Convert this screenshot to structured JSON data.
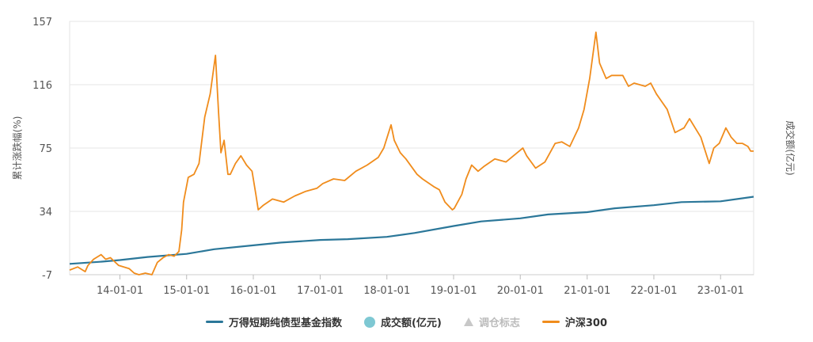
{
  "chart_data": {
    "type": "line",
    "ylabel_left": "累计涨跌幅(%)",
    "ylabel_right": "成交额(亿元)",
    "y_ticks": [
      -7,
      34,
      75,
      116,
      157
    ],
    "ylim": [
      -7,
      157
    ],
    "x_ticks": [
      "14-01-01",
      "15-01-01",
      "16-01-01",
      "17-01-01",
      "18-01-01",
      "19-01-01",
      "20-01-01",
      "21-01-01",
      "22-01-01",
      "23-01-01"
    ],
    "x_range": [
      "2013-04-01",
      "2023-07-01"
    ],
    "grid": true,
    "legend_position": "bottom",
    "series": [
      {
        "name": "万得短期纯债型基金指数",
        "color": "#2b7799",
        "dates": [
          "2013-04-01",
          "2013-10-01",
          "2014-01-01",
          "2014-06-01",
          "2015-01-01",
          "2015-06-01",
          "2016-01-01",
          "2016-06-01",
          "2017-01-01",
          "2017-06-01",
          "2018-01-01",
          "2018-06-01",
          "2019-01-01",
          "2019-06-01",
          "2020-01-01",
          "2020-06-01",
          "2021-01-01",
          "2021-06-01",
          "2022-01-01",
          "2022-06-01",
          "2023-01-01",
          "2023-07-01"
        ],
        "values": [
          0,
          1.5,
          2.5,
          4.5,
          6.5,
          9.5,
          12,
          13.8,
          15.5,
          16,
          17.5,
          20,
          24.5,
          27.5,
          29.5,
          32,
          33.5,
          36,
          38,
          40,
          40.5,
          43.5
        ]
      },
      {
        "name": "沪深300",
        "color": "#f08c1c",
        "dates": [
          "2013-04-01",
          "2013-05-15",
          "2013-06-25",
          "2013-07-10",
          "2013-08-10",
          "2013-09-20",
          "2013-10-15",
          "2013-11-10",
          "2013-12-25",
          "2014-02-20",
          "2014-03-20",
          "2014-04-15",
          "2014-05-20",
          "2014-06-25",
          "2014-07-25",
          "2014-08-25",
          "2014-09-25",
          "2014-10-25",
          "2014-11-20",
          "2014-12-05",
          "2014-12-15",
          "2015-01-10",
          "2015-02-10",
          "2015-03-10",
          "2015-04-10",
          "2015-05-10",
          "2015-06-08",
          "2015-06-25",
          "2015-07-08",
          "2015-07-25",
          "2015-08-15",
          "2015-08-28",
          "2015-09-25",
          "2015-10-25",
          "2015-11-25",
          "2015-12-25",
          "2016-01-15",
          "2016-01-28",
          "2016-02-25",
          "2016-04-15",
          "2016-06-15",
          "2016-08-15",
          "2016-10-15",
          "2016-12-15",
          "2017-01-15",
          "2017-03-15",
          "2017-05-15",
          "2017-07-15",
          "2017-09-15",
          "2017-11-15",
          "2017-12-15",
          "2018-01-24",
          "2018-02-10",
          "2018-03-15",
          "2018-04-15",
          "2018-06-15",
          "2018-07-15",
          "2018-09-15",
          "2018-10-15",
          "2018-11-15",
          "2018-12-25",
          "2019-01-05",
          "2019-02-15",
          "2019-03-10",
          "2019-04-10",
          "2019-05-15",
          "2019-06-15",
          "2019-08-15",
          "2019-10-15",
          "2019-12-15",
          "2020-01-15",
          "2020-02-05",
          "2020-03-25",
          "2020-05-15",
          "2020-07-10",
          "2020-08-15",
          "2020-09-28",
          "2020-11-15",
          "2020-12-15",
          "2021-01-15",
          "2021-02-18",
          "2021-03-10",
          "2021-04-15",
          "2021-05-15",
          "2021-07-15",
          "2021-08-15",
          "2021-09-15",
          "2021-11-15",
          "2021-12-15",
          "2022-01-15",
          "2022-03-15",
          "2022-04-27",
          "2022-06-15",
          "2022-07-15",
          "2022-09-15",
          "2022-10-31",
          "2022-11-25",
          "2022-12-25",
          "2023-01-30",
          "2023-02-28",
          "2023-03-31",
          "2023-04-30",
          "2023-05-31",
          "2023-06-15",
          "2023-07-01"
        ],
        "values": [
          -4,
          -2,
          -5,
          -1,
          3,
          6,
          3,
          4,
          -1,
          -3,
          -6,
          -7,
          -6,
          -7,
          1,
          4,
          6,
          5,
          8,
          22,
          40,
          56,
          58,
          65,
          95,
          110,
          135,
          98,
          72,
          80,
          58,
          58,
          65,
          70,
          64,
          60,
          45,
          35,
          38,
          42,
          40,
          44,
          47,
          49,
          52,
          55,
          54,
          60,
          64,
          69,
          75,
          90,
          80,
          72,
          68,
          58,
          55,
          50,
          48,
          40,
          35,
          36,
          45,
          55,
          64,
          60,
          63,
          68,
          66,
          72,
          75,
          70,
          62,
          66,
          78,
          79,
          76,
          88,
          100,
          120,
          150,
          130,
          120,
          122,
          122,
          115,
          117,
          115,
          117,
          110,
          100,
          85,
          88,
          94,
          82,
          65,
          75,
          78,
          88,
          82,
          78,
          78,
          76,
          73,
          73
        ]
      }
    ],
    "legend": [
      {
        "name": "万得短期纯债型基金指数",
        "symbol": "line",
        "color": "#2b7799",
        "enabled": true
      },
      {
        "name": "成交额(亿元)",
        "symbol": "circle",
        "color": "#7ec8d3",
        "enabled": true
      },
      {
        "name": "调仓标志",
        "symbol": "triangle",
        "color": "#c8c8c8",
        "enabled": false
      },
      {
        "name": "沪深300",
        "symbol": "line",
        "color": "#f08c1c",
        "enabled": true
      }
    ]
  }
}
